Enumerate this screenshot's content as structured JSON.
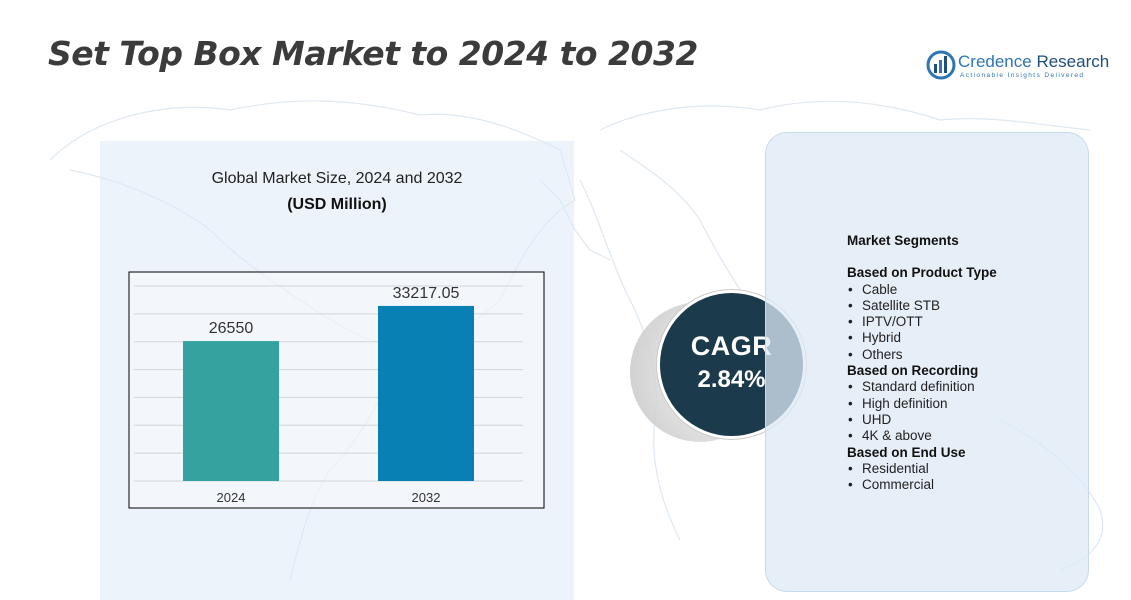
{
  "page": {
    "title": "Set Top Box Market to 2024 to 2032"
  },
  "logo": {
    "name_part1": "Credence",
    "name_part2": " Research",
    "tagline": "Actionable Insights Delivered"
  },
  "chart_panel": {
    "title": "Global Market Size,  2024 and 2032",
    "subtitle": "(USD Million)"
  },
  "chart_data": {
    "type": "bar",
    "title": "Global Market Size, 2024 and 2032",
    "ylabel": "USD Million",
    "categories": [
      "2024",
      "2032"
    ],
    "values": [
      26550,
      33217.05
    ],
    "value_labels": [
      "26550",
      "33217.05"
    ],
    "colors": [
      "#35a2a0",
      "#0880b3"
    ],
    "ylim": [
      0,
      37000
    ],
    "grid": true
  },
  "cagr": {
    "label": "CAGR",
    "value": "2.84%"
  },
  "segments": {
    "heading": "Market Segments",
    "groups": [
      {
        "title": "Based on Product Type",
        "items": [
          "Cable",
          "Satellite STB",
          "IPTV/OTT",
          "Hybrid",
          "Others"
        ]
      },
      {
        "title": "Based on Recording",
        "items": [
          "Standard definition",
          "High definition",
          "UHD",
          "4K & above"
        ]
      },
      {
        "title": "Based on End Use",
        "items": [
          "Residential",
          "Commercial"
        ]
      }
    ]
  },
  "colors": {
    "title_text": "#3b3b3b",
    "panel_fill": "#deeaf6",
    "cagr_circle": "#1b3a4b",
    "brand_blue": "#2e75b6"
  }
}
